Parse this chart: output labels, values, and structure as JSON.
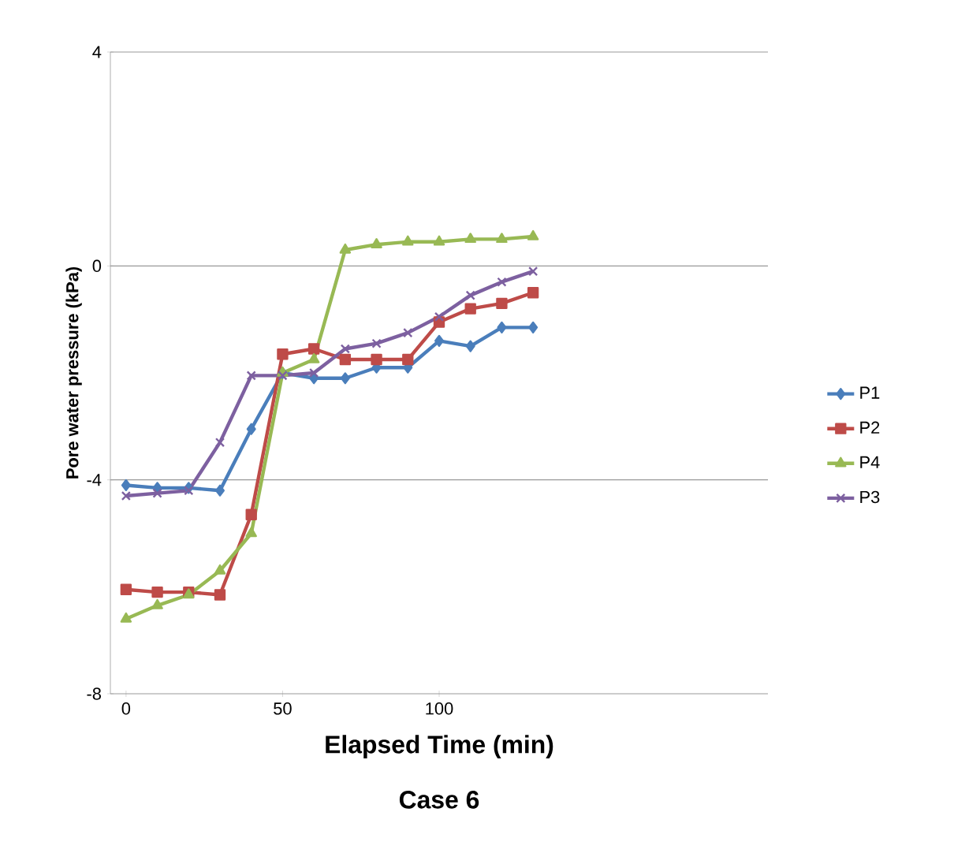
{
  "chart_data": {
    "type": "line",
    "title": "Case 6",
    "xlabel": "Elapsed Time (min)",
    "ylabel": "Pore water pressure (kPa)",
    "x": [
      0,
      10,
      20,
      30,
      40,
      50,
      60,
      70,
      80,
      90,
      100,
      110,
      120,
      130
    ],
    "xlim": [
      -5,
      205
    ],
    "xticks": [
      0,
      50,
      100
    ],
    "ylim": [
      -8,
      4
    ],
    "yticks": [
      -8,
      -4,
      0,
      4
    ],
    "grid": "y",
    "legend": "right",
    "series": [
      {
        "name": "P1",
        "color": "#4a7ebb",
        "marker": "diamond",
        "values": [
          -4.1,
          -4.15,
          -4.15,
          -4.2,
          -3.05,
          -2.0,
          -2.1,
          -2.1,
          -1.9,
          -1.9,
          -1.4,
          -1.5,
          -1.15,
          -1.15
        ]
      },
      {
        "name": "P2",
        "color": "#be4b48",
        "marker": "square",
        "values": [
          -6.05,
          -6.1,
          -6.1,
          -6.15,
          -4.65,
          -1.65,
          -1.55,
          -1.75,
          -1.75,
          -1.75,
          -1.05,
          -0.8,
          -0.7,
          -0.5
        ]
      },
      {
        "name": "P4",
        "color": "#98b954",
        "marker": "triangle",
        "values": [
          -6.6,
          -6.35,
          -6.15,
          -5.7,
          -5.0,
          -2.0,
          -1.75,
          0.3,
          0.4,
          0.45,
          0.45,
          0.5,
          0.5,
          0.55
        ]
      },
      {
        "name": "P3",
        "color": "#7d60a0",
        "marker": "cross",
        "values": [
          -4.3,
          -4.25,
          -4.2,
          -3.3,
          -2.05,
          -2.05,
          -2.0,
          -1.55,
          -1.45,
          -1.25,
          -0.95,
          -0.55,
          -0.3,
          -0.1
        ]
      }
    ]
  }
}
